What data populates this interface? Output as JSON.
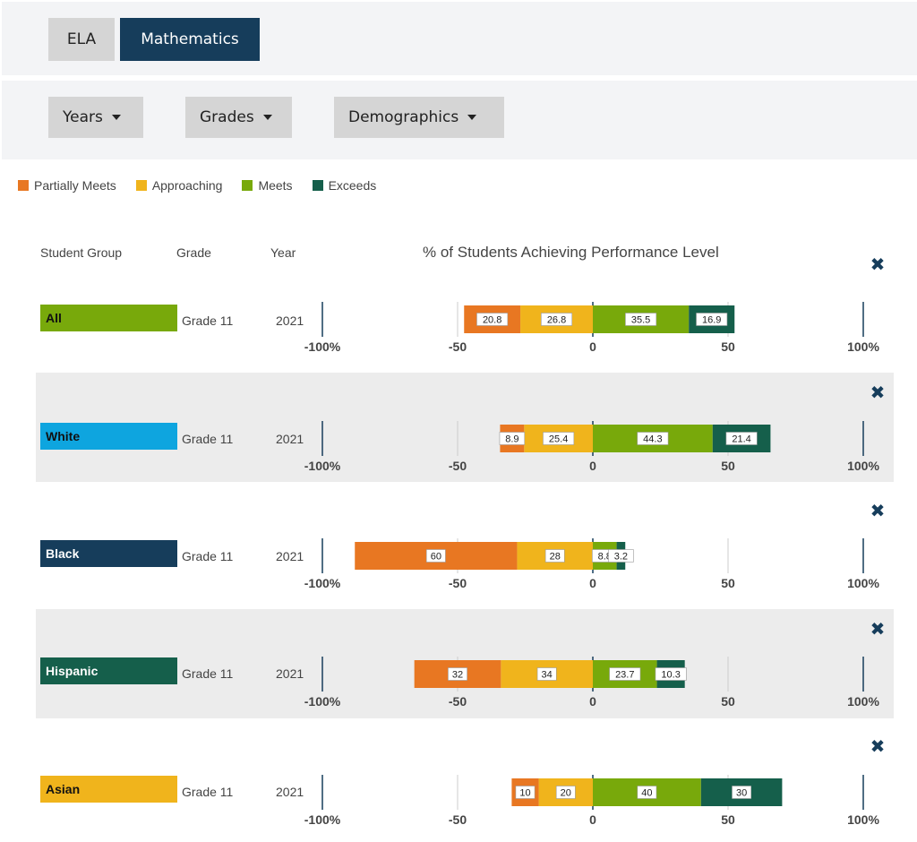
{
  "tabs": [
    {
      "label": "ELA",
      "active": false
    },
    {
      "label": "Mathematics",
      "active": true
    }
  ],
  "filters": [
    {
      "label": "Years"
    },
    {
      "label": "Grades"
    },
    {
      "label": "Demographics"
    }
  ],
  "legend": [
    {
      "label": "Partially Meets",
      "color": "#e87722"
    },
    {
      "label": "Approaching",
      "color": "#f0b41c"
    },
    {
      "label": "Meets",
      "color": "#78a90b"
    },
    {
      "label": "Exceeds",
      "color": "#155f4b"
    }
  ],
  "table_headers": {
    "student_group": "Student Group",
    "grade": "Grade",
    "year": "Year",
    "chart_title": "% of Students Achieving Performance Level"
  },
  "rows": [
    {
      "group": "All",
      "group_color": "#78a90b",
      "grade": "Grade 11",
      "year": "2021"
    },
    {
      "group": "White",
      "group_color": "#0ea5df",
      "grade": "Grade 11",
      "year": "2021"
    },
    {
      "group": "Black",
      "group_color": "#163d5b",
      "grade": "Grade 11",
      "year": "2021"
    },
    {
      "group": "Hispanic",
      "group_color": "#155f4b",
      "grade": "Grade 11",
      "year": "2021"
    },
    {
      "group": "Asian",
      "group_color": "#f0b41c",
      "grade": "Grade 11",
      "year": "2021"
    }
  ],
  "chart_data": {
    "type": "bar",
    "subtype": "diverging-stacked-horizontal",
    "title": "% of Students Achieving Performance Level",
    "xlim": [
      -100,
      100
    ],
    "x_ticks": [
      -100,
      -50,
      0,
      50,
      100
    ],
    "x_tick_labels": [
      "-100%",
      "-50",
      "0",
      "50",
      "100%"
    ],
    "categories": [
      "All",
      "White",
      "Black",
      "Hispanic",
      "Asian"
    ],
    "series": [
      {
        "name": "Partially Meets",
        "side": "negative",
        "color": "#e87722",
        "values": [
          20.8,
          8.9,
          60,
          32,
          10
        ]
      },
      {
        "name": "Approaching",
        "side": "negative",
        "color": "#f0b41c",
        "values": [
          26.8,
          25.4,
          28,
          34,
          20
        ]
      },
      {
        "name": "Meets",
        "side": "positive",
        "color": "#78a90b",
        "values": [
          35.5,
          44.3,
          8.8,
          23.7,
          40
        ]
      },
      {
        "name": "Exceeds",
        "side": "positive",
        "color": "#155f4b",
        "values": [
          16.9,
          21.4,
          3.2,
          10.3,
          30
        ]
      }
    ]
  }
}
